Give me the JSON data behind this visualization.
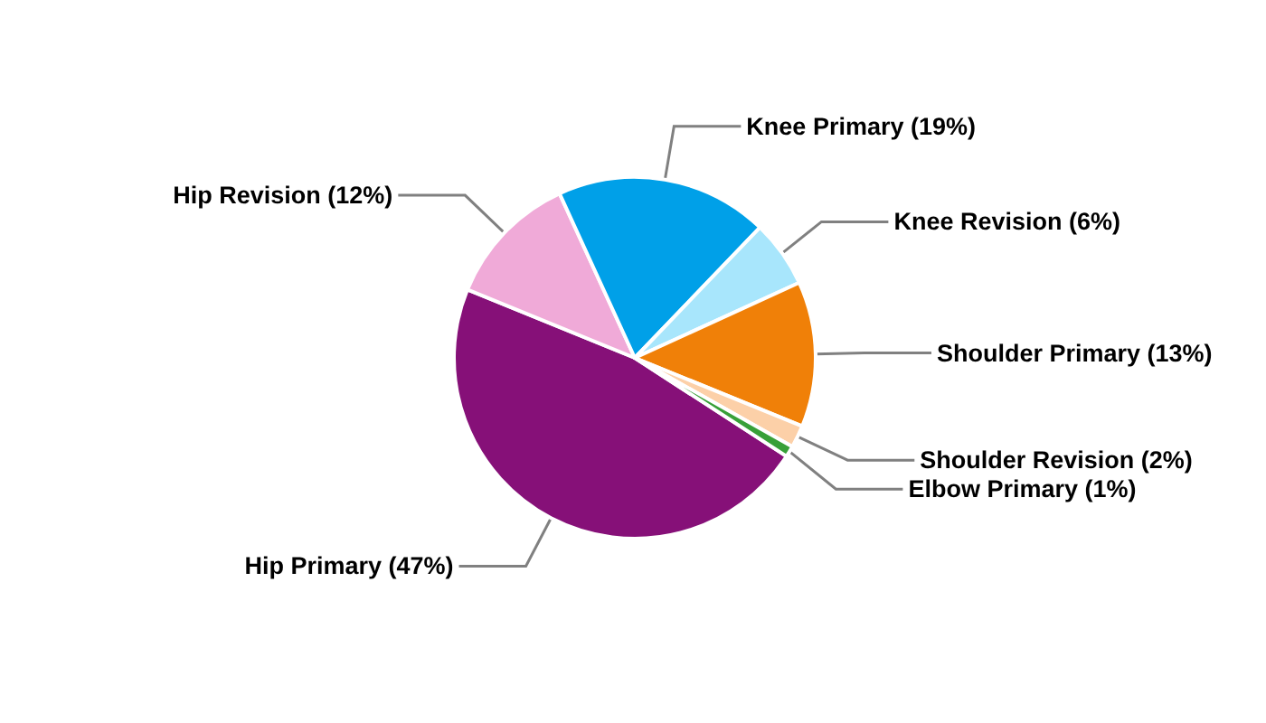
{
  "chart_data": {
    "type": "pie",
    "categories": [
      "Hip Primary",
      "Hip Revision",
      "Knee Primary",
      "Knee Revision",
      "Shoulder Primary",
      "Shoulder Revision",
      "Elbow Primary"
    ],
    "values": [
      47,
      12,
      19,
      6,
      13,
      2,
      1
    ],
    "colors": [
      "#861078",
      "#f0aad8",
      "#00a0e8",
      "#a8e6fc",
      "#f08008",
      "#fcd0a8",
      "#38a038"
    ],
    "value_labels": [
      "(47%)",
      "(12%)",
      "(19%)",
      "(6%)",
      "(13%)",
      "(2%)",
      "(1%)"
    ]
  }
}
